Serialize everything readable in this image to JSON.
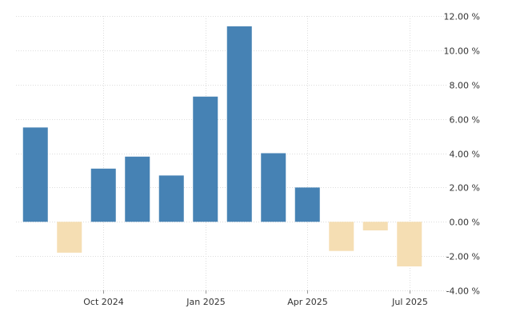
{
  "chart_data": {
    "type": "bar",
    "title": "",
    "xlabel": "",
    "ylabel": "",
    "y_axis_position": "right",
    "grid": true,
    "legend": "none",
    "ylim": [
      -4,
      12
    ],
    "yticks": [
      -4,
      -2,
      0,
      2,
      4,
      6,
      8,
      10,
      12
    ],
    "ytick_labels": [
      "-4.00 %",
      "-2.00 %",
      "0.00 %",
      "2.00 %",
      "4.00 %",
      "6.00 %",
      "8.00 %",
      "10.00 %",
      "12.00 %"
    ],
    "categories": [
      "Aug 2024",
      "Sep 2024",
      "Oct 2024",
      "Nov 2024",
      "Dec 2024",
      "Jan 2025",
      "Feb 2025",
      "Mar 2025",
      "Apr 2025",
      "May 2025",
      "Jun 2025",
      "Jul 2025"
    ],
    "values": [
      5.5,
      -1.8,
      3.1,
      3.8,
      2.7,
      7.3,
      11.4,
      4.0,
      2.0,
      -1.7,
      -0.5,
      -2.6
    ],
    "xtick_labels": [
      {
        "category": "Oct 2024",
        "label": "Oct 2024"
      },
      {
        "category": "Jan 2025",
        "label": "Jan 2025"
      },
      {
        "category": "Apr 2025",
        "label": "Apr 2025"
      },
      {
        "category": "Jul 2025",
        "label": "Jul 2025"
      }
    ],
    "colors": {
      "positive": "#4682b4",
      "negative": "#f5deb3",
      "grid": "#dddddd",
      "axis_text": "#333333"
    }
  }
}
